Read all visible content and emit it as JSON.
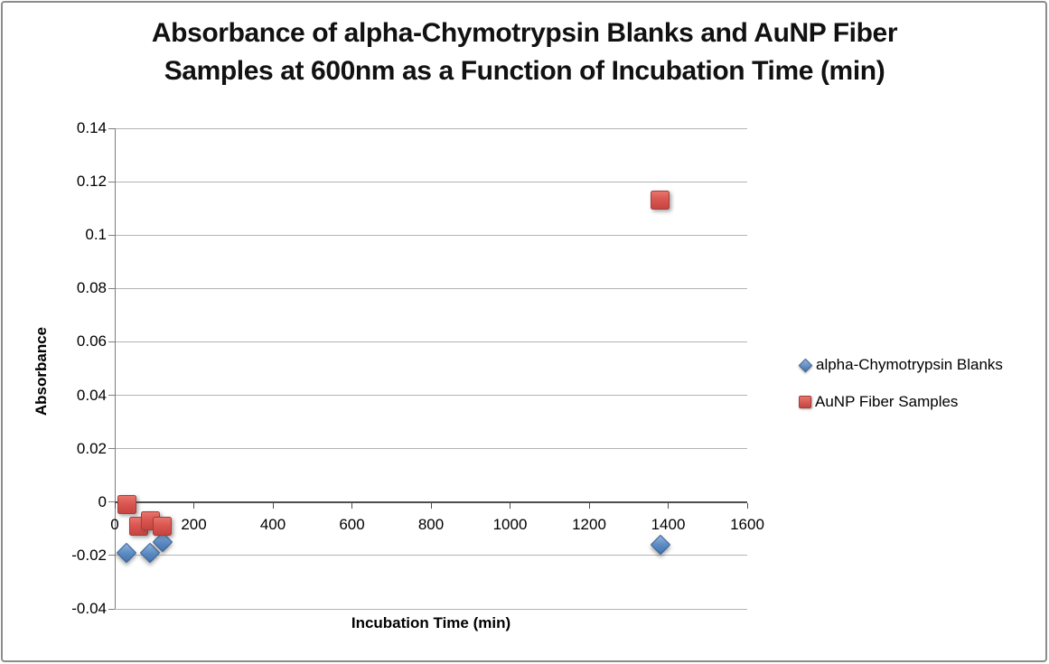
{
  "chart": {
    "title_lines": [
      "Absorbance of alpha-Chymotrypsin Blanks and AuNP Fiber",
      "Samples at 600nm as a Function of Incubation Time (min)"
    ],
    "y_axis": {
      "label": "Absorbance",
      "tick_labels": [
        "0.14",
        "0.12",
        "0.1",
        "0.08",
        "0.06",
        "0.04",
        "0.02",
        "0",
        "-0.02",
        "-0.04"
      ]
    },
    "x_axis": {
      "label": "Incubation Time (min)",
      "tick_labels": [
        "0",
        "200",
        "400",
        "600",
        "800",
        "1000",
        "1200",
        "1400",
        "1600"
      ]
    },
    "legend": {
      "items": [
        {
          "label": "alpha-Chymotrypsin Blanks",
          "marker": "diamond",
          "color": "#4f81bd"
        },
        {
          "label": "AuNP Fiber Samples",
          "marker": "square",
          "color": "#c0504d"
        }
      ]
    }
  },
  "chart_data": {
    "type": "scatter",
    "title": "Absorbance of alpha-Chymotrypsin Blanks and AuNP Fiber Samples at 600nm as a Function of Incubation Time (min)",
    "xlabel": "Incubation Time (min)",
    "ylabel": "Absorbance",
    "xlim": [
      0,
      1600
    ],
    "ylim": [
      -0.04,
      0.14
    ],
    "x_tick_step": 200,
    "y_tick_step": 0.02,
    "grid": "horizontal",
    "legend_position": "right",
    "series": [
      {
        "name": "alpha-Chymotrypsin Blanks",
        "marker": "diamond",
        "color": "#4f81bd",
        "points": [
          [
            30,
            -0.019
          ],
          [
            90,
            -0.019
          ],
          [
            120,
            -0.015
          ],
          [
            1380,
            -0.016
          ]
        ]
      },
      {
        "name": "AuNP Fiber Samples",
        "marker": "square",
        "color": "#c0504d",
        "points": [
          [
            30,
            -0.001
          ],
          [
            60,
            -0.009
          ],
          [
            90,
            -0.007
          ],
          [
            120,
            -0.009
          ],
          [
            1380,
            0.113
          ]
        ]
      }
    ]
  }
}
